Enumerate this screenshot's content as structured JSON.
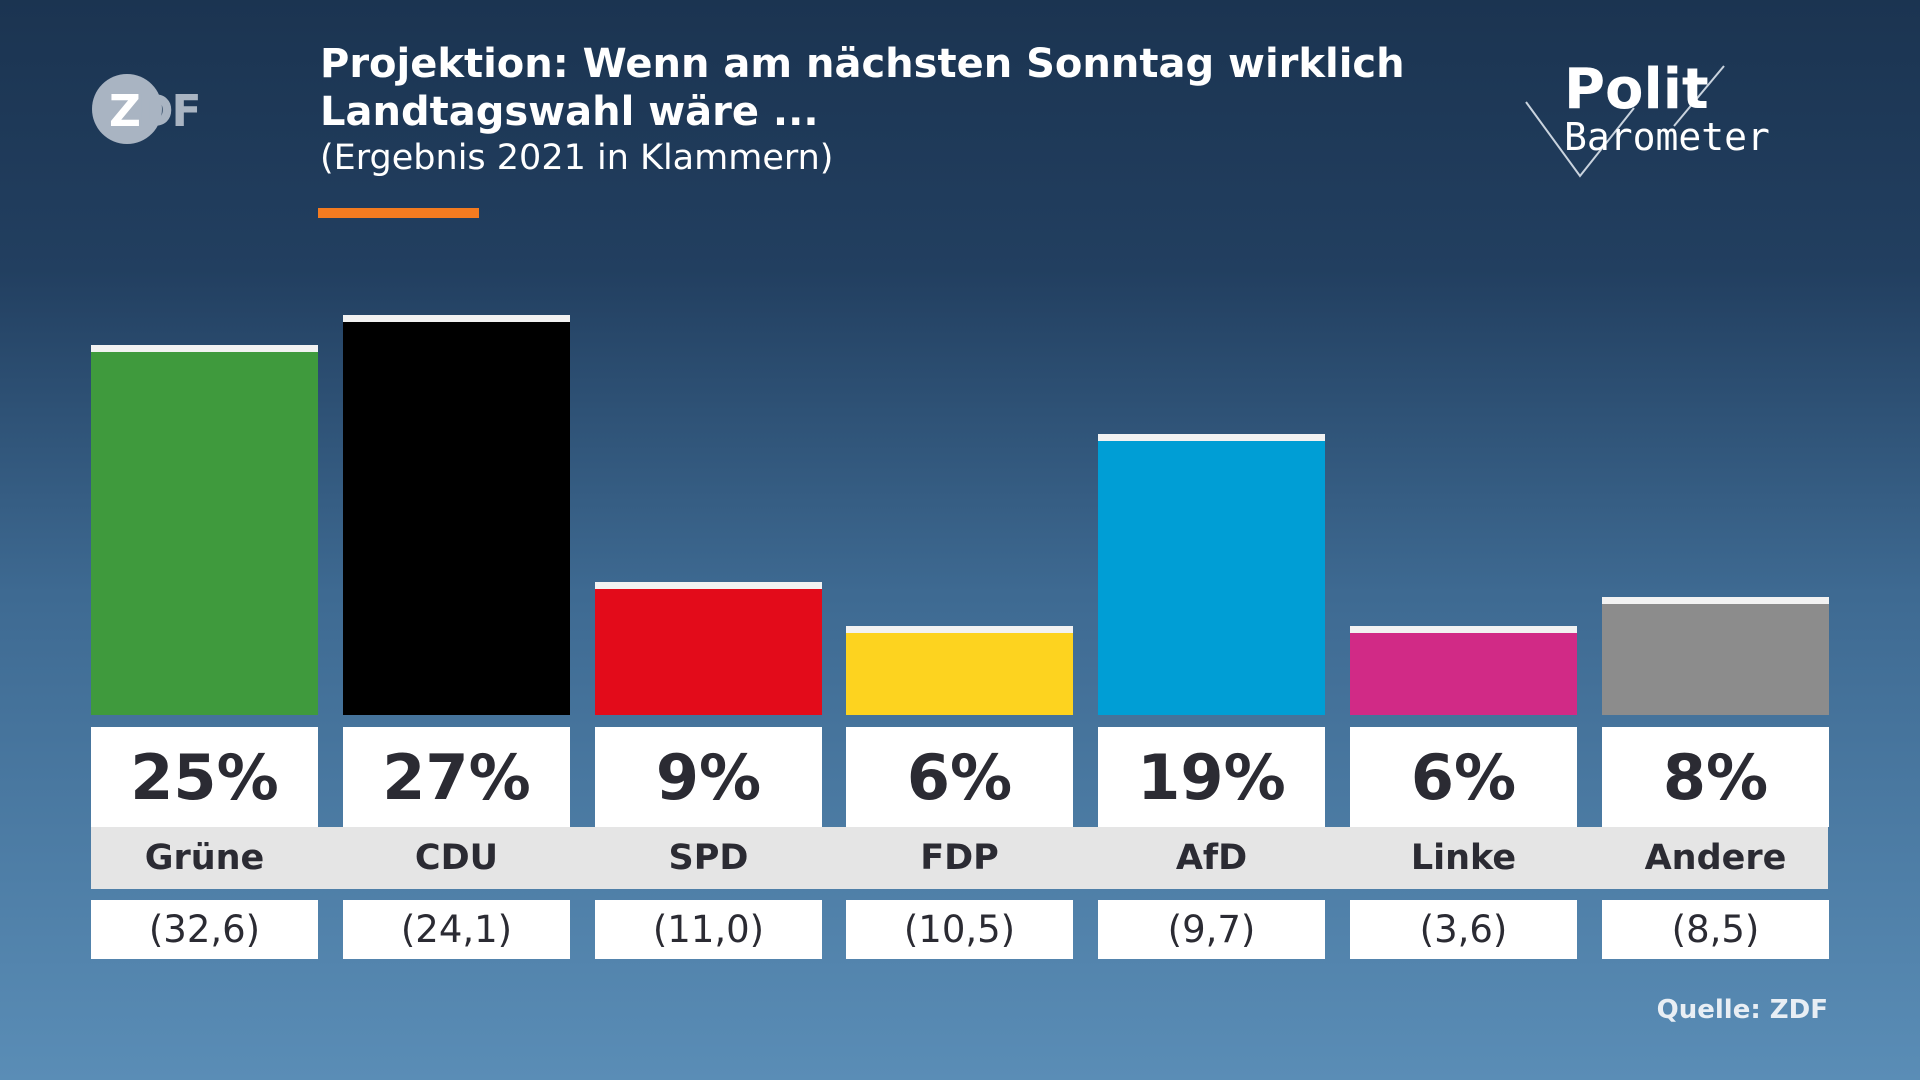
{
  "header": {
    "title_line1": "Projektion: Wenn am nächsten Sonntag wirklich",
    "title_line2": "Landtagswahl wäre ...",
    "subtitle": "(Ergebnis 2021 in Klammern)",
    "accent_color": "#f47b20"
  },
  "logos": {
    "left": "ZDF",
    "right_line1": "Polit",
    "right_line2": "Barometer"
  },
  "source": "Quelle: ZDF",
  "chart_data": {
    "type": "bar",
    "title": "Projektion: Wenn am nächsten Sonntag wirklich Landtagswahl wäre ...",
    "subtitle": "(Ergebnis 2021 in Klammern)",
    "categories": [
      "Grüne",
      "CDU",
      "SPD",
      "FDP",
      "AfD",
      "Linke",
      "Andere"
    ],
    "values": [
      25,
      27,
      9,
      6,
      19,
      6,
      8
    ],
    "value_labels": [
      "25%",
      "27%",
      "9%",
      "6%",
      "19%",
      "6%",
      "8%"
    ],
    "previous_labels": [
      "(32,6)",
      "(24,1)",
      "(11,0)",
      "(10,5)",
      "(9,7)",
      "(3,6)",
      "(8,5)"
    ],
    "previous_values": [
      32.6,
      24.1,
      11.0,
      10.5,
      9.7,
      3.6,
      8.5
    ],
    "colors": [
      "#3f9a3d",
      "#000000",
      "#e30b1a",
      "#fdd31f",
      "#009ed5",
      "#d12a86",
      "#8c8c8c"
    ],
    "grid": false,
    "legend": "none"
  }
}
